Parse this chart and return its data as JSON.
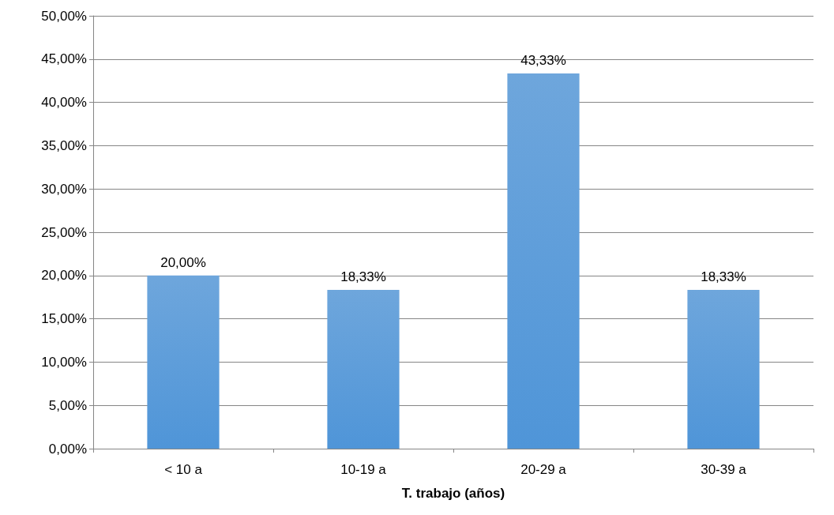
{
  "chart_data": {
    "type": "bar",
    "xlabel": "T. trabajo (años)",
    "categories": [
      "< 10 a",
      "10-19 a",
      "20-29 a",
      "30-39 a"
    ],
    "values": [
      20,
      18.33,
      43.33,
      18.33
    ],
    "value_labels": [
      "20,00%",
      "18,33%",
      "43,33%",
      "18,33%"
    ],
    "color": "#4f95d8",
    "ylim": [
      0,
      50
    ],
    "yticks": [
      {
        "value": 0,
        "label": "0,00%"
      },
      {
        "value": 5,
        "label": "5,00%"
      },
      {
        "value": 10,
        "label": "10,00%"
      },
      {
        "value": 15,
        "label": "15,00%"
      },
      {
        "value": 20,
        "label": "20,00%"
      },
      {
        "value": 25,
        "label": "25,00%"
      },
      {
        "value": 30,
        "label": "30,00%"
      },
      {
        "value": 35,
        "label": "35,00%"
      },
      {
        "value": 40,
        "label": "40,00%"
      },
      {
        "value": 45,
        "label": "45,00%"
      },
      {
        "value": 50,
        "label": "50,00%"
      }
    ],
    "grid": "y"
  }
}
